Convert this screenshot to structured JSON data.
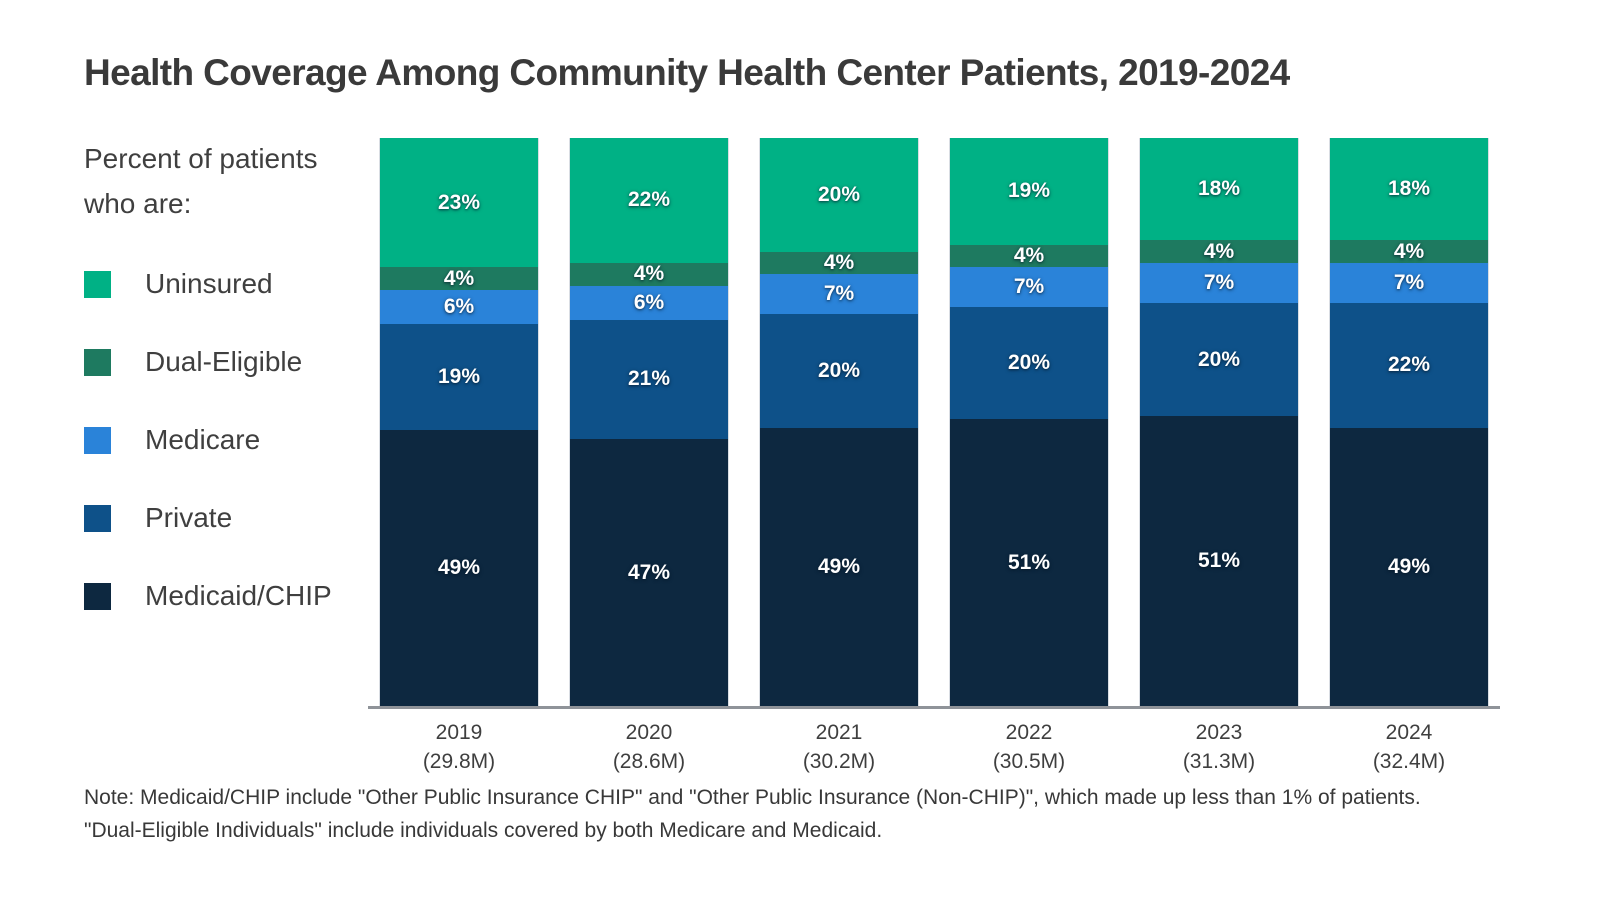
{
  "title": "Health Coverage Among Community Health Center Patients, 2019-2024",
  "legend": {
    "heading_line1": "Percent of patients",
    "heading_line2": "who are:",
    "items": [
      {
        "label": "Uninsured",
        "color": "#00B185"
      },
      {
        "label": "Dual-Eligible",
        "color": "#1E7A60"
      },
      {
        "label": "Medicare",
        "color": "#2A83D9"
      },
      {
        "label": "Private",
        "color": "#0E5189"
      },
      {
        "label": "Medicaid/CHIP",
        "color": "#0D2840"
      }
    ]
  },
  "chart_data": {
    "type": "bar",
    "subtype": "stacked-percent",
    "title": "Health Coverage Among Community Health Center Patients, 2019-2024",
    "categories": [
      "2019",
      "2020",
      "2021",
      "2022",
      "2023",
      "2024"
    ],
    "category_sublabels": [
      "(29.8M)",
      "(28.6M)",
      "(30.2M)",
      "(30.5M)",
      "(31.3M)",
      "(32.4M)"
    ],
    "series": [
      {
        "name": "Uninsured",
        "color": "#00B185",
        "values": [
          23,
          22,
          20,
          19,
          18,
          18
        ]
      },
      {
        "name": "Dual-Eligible",
        "color": "#1E7A60",
        "values": [
          4,
          4,
          4,
          4,
          4,
          4
        ]
      },
      {
        "name": "Medicare",
        "color": "#2A83D9",
        "values": [
          6,
          6,
          7,
          7,
          7,
          7
        ]
      },
      {
        "name": "Private",
        "color": "#0E5189",
        "values": [
          19,
          21,
          20,
          20,
          20,
          22
        ]
      },
      {
        "name": "Medicaid/CHIP",
        "color": "#0D2840",
        "values": [
          49,
          47,
          49,
          51,
          51,
          49
        ]
      }
    ],
    "value_suffix": "%",
    "ylim": [
      0,
      100
    ],
    "grid": false,
    "legend_position": "left",
    "axis_line_color": "#8f9399"
  },
  "note": {
    "line1": "Note: Medicaid/CHIP include \"Other Public Insurance CHIP\" and \"Other Public Insurance (Non-CHIP)\", which made up less than 1% of patients.",
    "line2": "\"Dual-Eligible Individuals\" include individuals covered by both Medicare and Medicaid."
  }
}
